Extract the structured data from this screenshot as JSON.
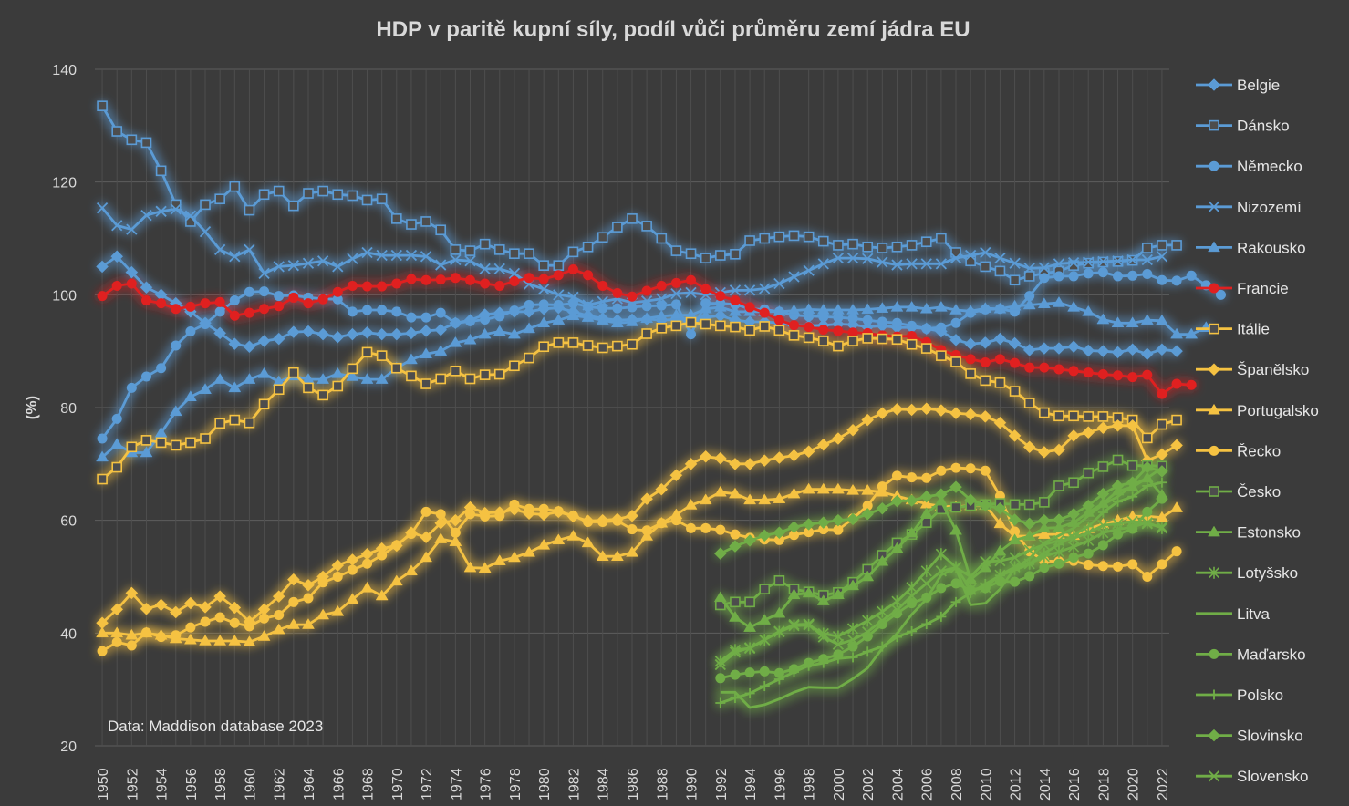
{
  "chart_data": {
    "type": "line",
    "title": "HDP v paritě kupní síly, podíl vůči průměru zemí jádra EU",
    "ylabel": "(%)",
    "xlabel": "",
    "ylim": [
      20,
      140
    ],
    "yticks": [
      20,
      40,
      60,
      80,
      100,
      120,
      140
    ],
    "xlim": [
      1950,
      2022
    ],
    "xticks": [
      1950,
      1952,
      1954,
      1956,
      1958,
      1960,
      1962,
      1964,
      1966,
      1968,
      1970,
      1972,
      1974,
      1976,
      1978,
      1980,
      1982,
      1984,
      1986,
      1988,
      1990,
      1992,
      1994,
      1996,
      1998,
      2000,
      2002,
      2004,
      2006,
      2008,
      2010,
      2012,
      2014,
      2016,
      2018,
      2020,
      2022
    ],
    "grid": true,
    "legend_position": "right",
    "annotation": "Data: Maddison database 2023",
    "series": [
      {
        "name": "Belgie",
        "color": "#5b9bd5",
        "marker": "diamond",
        "start": 1950,
        "values": [
          105,
          106.8,
          104,
          101.3,
          100,
          98.5,
          97,
          95,
          93.2,
          91.3,
          90.8,
          91.8,
          92.2,
          93.4,
          93.5,
          93,
          92.5,
          93,
          93.3,
          93,
          93,
          93.2,
          93.6,
          93.8,
          95,
          95.5,
          96.5,
          96.8,
          97,
          97,
          97.5,
          97.7,
          97,
          96.3,
          95.8,
          95.5,
          95.6,
          95.7,
          95.5,
          95.6,
          95.8,
          96,
          96.3,
          95.5,
          95.2,
          95.2,
          95,
          94.5,
          94.5,
          94.6,
          94.8,
          94.7,
          94.3,
          94.5,
          94.2,
          94.2,
          94,
          93.5,
          92,
          91.3,
          91.5,
          92.2,
          91.4,
          90.2,
          90.5,
          90.5,
          90.8,
          90.1,
          90,
          89.8,
          90.3,
          89.5,
          90.3,
          90
        ]
      },
      {
        "name": "Dánsko",
        "color": "#5b9bd5",
        "marker": "square",
        "start": 1950,
        "values": [
          133.5,
          129,
          127.5,
          127,
          122,
          116,
          113,
          116,
          117,
          119.2,
          115,
          117.8,
          118.4,
          115.8,
          118,
          118.4,
          117.8,
          117.6,
          116.8,
          117,
          113.5,
          112.5,
          113,
          111.5,
          108,
          107.8,
          109,
          108,
          107.3,
          107.3,
          105.2,
          105.2,
          107.6,
          108.5,
          110.2,
          112,
          113.5,
          112.2,
          110,
          107.8,
          107.3,
          106.5,
          107,
          107.2,
          109.6,
          110,
          110.3,
          110.5,
          110.3,
          109.5,
          108.8,
          109,
          108.5,
          108.3,
          108.5,
          108.8,
          109.4,
          110,
          107.5,
          106,
          105,
          104.2,
          102.6,
          103.3,
          103.8,
          104.2,
          105.2,
          105.6,
          105.8,
          105.9,
          106.1,
          108.3,
          108.8,
          108.8
        ]
      },
      {
        "name": "Německo",
        "color": "#5b9bd5",
        "marker": "circle",
        "start": 1950,
        "values": [
          74.5,
          78,
          83.5,
          85.5,
          87,
          91,
          93.5,
          94.8,
          97,
          99,
          100.5,
          100.6,
          99.8,
          99.9,
          99.5,
          99.3,
          99.2,
          97,
          97.3,
          97.3,
          97,
          96,
          96,
          96.8,
          95,
          95.3,
          95.6,
          96.2,
          97.2,
          98.2,
          98.3,
          98.2,
          98.5,
          97.9,
          97.6,
          97.6,
          97.8,
          98,
          98.1,
          98.3,
          93,
          98.5,
          98.5,
          98.3,
          97.5,
          97.4,
          97,
          96.4,
          96.2,
          96.1,
          96,
          95.8,
          95.5,
          95.2,
          95,
          94.5,
          94,
          94.2,
          95,
          96.8,
          97.4,
          97.5,
          97,
          99.8,
          103,
          103.3,
          103.3,
          103.8,
          104,
          103.3,
          103.4,
          103.7,
          102.6,
          102.5,
          103.4,
          101.7,
          100
        ]
      },
      {
        "name": "Nizozemí",
        "color": "#5b9bd5",
        "marker": "x",
        "start": 1950,
        "values": [
          115.4,
          112.3,
          111.6,
          114.1,
          114.8,
          115.2,
          114,
          111.2,
          108,
          106.8,
          108,
          103.8,
          105,
          105.2,
          105.6,
          106,
          105,
          106.4,
          107.5,
          107,
          107,
          107,
          106.8,
          105.3,
          106.2,
          106,
          104.6,
          104.6,
          103.8,
          101.9,
          101,
          100,
          99.6,
          98.2,
          98.8,
          99.3,
          98.6,
          98.9,
          99.3,
          100.2,
          100.4,
          100,
          100.4,
          100.8,
          100.8,
          101.1,
          102,
          103.2,
          104.3,
          105.5,
          106.5,
          106.5,
          106.4,
          105.8,
          105.3,
          105.5,
          105.5,
          105.5,
          106.5,
          107,
          107.5,
          106.5,
          105.6,
          104.7,
          104.8,
          105.5,
          105.7,
          105.8,
          105.9,
          106,
          106.2,
          106.2,
          106.8
        ]
      },
      {
        "name": "Rakousko",
        "color": "#5b9bd5",
        "marker": "triangle",
        "start": 1950,
        "values": [
          71.2,
          73.5,
          72,
          72,
          75.5,
          79.3,
          81.9,
          83.2,
          85,
          83.5,
          85,
          86,
          84.6,
          85.6,
          85,
          85,
          86,
          85.5,
          85,
          85,
          87,
          88.5,
          89.5,
          90,
          91.5,
          92,
          93,
          93.5,
          93,
          94,
          95,
          95.5,
          96.3,
          96,
          95.5,
          95,
          95.2,
          95.8,
          96.2,
          96.4,
          96.4,
          97.5,
          97.8,
          97,
          97,
          97,
          97,
          97.2,
          97.4,
          97.3,
          97.3,
          97.3,
          97.4,
          97.6,
          97.8,
          97.8,
          97.5,
          97.8,
          97.3,
          97.1,
          97.6,
          97.5,
          98,
          98.2,
          98.4,
          98.6,
          97.8,
          97,
          95.6,
          95,
          95,
          95.5,
          95.4,
          93,
          93,
          94.2
        ]
      },
      {
        "name": "Francie",
        "color": "#e02020",
        "marker": "circle",
        "start": 1950,
        "values": [
          99.8,
          101.6,
          102,
          99,
          98.5,
          97.5,
          97.9,
          98.5,
          98.7,
          96.3,
          96.8,
          97.5,
          98,
          99.5,
          98.5,
          99.2,
          100.5,
          101.6,
          101.5,
          101.5,
          102,
          102.8,
          102.6,
          102.7,
          103,
          102.6,
          102,
          101.6,
          102.4,
          103,
          102.8,
          103.5,
          104.5,
          103.5,
          101.6,
          100.3,
          99.7,
          100.7,
          101.6,
          102.1,
          102.6,
          101,
          99.8,
          99,
          97.8,
          96.8,
          95.5,
          94.6,
          94.3,
          93.8,
          93.6,
          93.3,
          93.2,
          92.8,
          92.6,
          92.7,
          91.6,
          90.2,
          89.3,
          88.6,
          88,
          88.6,
          87.9,
          87.1,
          87.1,
          86.8,
          86.5,
          86.2,
          85.9,
          85.7,
          85.4,
          85.8,
          82.4,
          84.2,
          84
        ]
      },
      {
        "name": "Itálie",
        "color": "#f5c242",
        "marker": "square",
        "start": 1950,
        "values": [
          67.3,
          69.4,
          73,
          74.2,
          73.8,
          73.3,
          73.8,
          74.5,
          77.2,
          77.8,
          77.3,
          80.6,
          83.2,
          86.2,
          83.5,
          82.2,
          83.8,
          86.9,
          89.8,
          89.2,
          87,
          85.6,
          84.2,
          85.1,
          86.5,
          85.1,
          85.8,
          85.9,
          87.4,
          88.8,
          90.8,
          91.5,
          91.5,
          91,
          90.6,
          90.9,
          91.2,
          93.1,
          94.1,
          94.5,
          95.1,
          94.8,
          94.5,
          94.3,
          93.7,
          94.4,
          93.7,
          92.8,
          92.4,
          91.8,
          90.9,
          91.8,
          92.3,
          92.2,
          92.1,
          91.2,
          90.5,
          89.2,
          88.1,
          86,
          84.8,
          84.4,
          82.9,
          80.8,
          79.1,
          78.5,
          78.5,
          78.4,
          78.4,
          78.2,
          77.8,
          74.6,
          77,
          77.8
        ]
      },
      {
        "name": "Španělsko",
        "color": "#f5c242",
        "marker": "diamond",
        "start": 1950,
        "values": [
          41.8,
          44.2,
          47.1,
          44.3,
          45,
          43.7,
          45.3,
          44.6,
          46.5,
          44.5,
          42,
          44.2,
          46.5,
          49.5,
          48.5,
          50,
          52,
          53,
          54,
          55,
          55.5,
          57.8,
          57,
          59.5,
          60,
          62.3,
          61.3,
          61.4,
          61.9,
          61.2,
          61,
          61.5,
          60.7,
          59.9,
          60,
          60.2,
          60.8,
          63.8,
          65.5,
          68,
          70,
          71.3,
          71,
          70,
          70,
          70.6,
          71.1,
          71.5,
          72.2,
          73.4,
          74.5,
          76,
          77.8,
          79,
          79.7,
          79.6,
          79.8,
          79.5,
          79,
          78.8,
          78.4,
          77.3,
          75,
          73,
          72.1,
          72.5,
          75,
          75.6,
          76.4,
          76.8,
          76.8,
          70.6,
          71.7,
          73.3
        ]
      },
      {
        "name": "Portugalsko",
        "color": "#f5c242",
        "marker": "triangle",
        "start": 1950,
        "values": [
          40,
          40,
          39.6,
          40,
          39.6,
          39,
          38.8,
          38.6,
          38.6,
          38.6,
          38.4,
          39.4,
          40.6,
          41.5,
          41.5,
          43.2,
          43.8,
          46,
          48,
          46.6,
          49.2,
          51,
          53.4,
          56.7,
          56.2,
          51.6,
          51.5,
          52.8,
          53.4,
          54.3,
          55.6,
          56.5,
          57.2,
          56,
          53.6,
          53.6,
          54.3,
          57.2,
          59.5,
          61,
          62.7,
          63.6,
          65,
          64.7,
          63.6,
          63.6,
          63.8,
          64.7,
          65.5,
          65.5,
          65.5,
          65.3,
          65.3,
          65,
          64.3,
          63.6,
          62.9,
          62.5,
          62.4,
          62.6,
          62.7,
          59.4,
          57.2,
          57.2,
          57.5,
          57.5,
          57.3,
          58.5,
          59.3,
          60,
          60.7,
          60.7,
          60.5,
          62.2
        ]
      },
      {
        "name": "Řecko",
        "color": "#f5c242",
        "marker": "circle",
        "start": 1950,
        "values": [
          36.8,
          38.4,
          37.8,
          40.1,
          39.3,
          39.6,
          41,
          42,
          42.8,
          41.8,
          41.2,
          42.6,
          43.2,
          45.5,
          46.2,
          49,
          50,
          51.2,
          52.3,
          53.8,
          55.6,
          57.6,
          61.5,
          61.1,
          57.8,
          61.1,
          60.7,
          60.8,
          62.8,
          62,
          62,
          61.6,
          60.8,
          59.7,
          59.7,
          59.9,
          58.4,
          58.2,
          59.5,
          60,
          58.6,
          58.6,
          58.3,
          57.5,
          56.9,
          56.6,
          56.5,
          57.4,
          57.9,
          58.4,
          58.3,
          60.3,
          62.6,
          66,
          67.9,
          67.6,
          67.5,
          68.8,
          69.3,
          69.2,
          68.8,
          64.3,
          58,
          54.5,
          52.8,
          52.7,
          52.8,
          52.1,
          51.9,
          51.8,
          52.2,
          50,
          52.2,
          54.5
        ]
      },
      {
        "name": "Česko",
        "color": "#70ad47",
        "marker": "square",
        "start": 1992,
        "values": [
          45,
          45.5,
          45.5,
          47.8,
          49.3,
          47.8,
          47.3,
          46.7,
          47.2,
          49,
          51.3,
          53.8,
          56,
          57.5,
          59.6,
          62,
          62.3,
          62.6,
          62.8,
          63,
          62.8,
          62.8,
          63.2,
          66.1,
          66.7,
          68.4,
          69.5,
          70.7,
          69.7,
          69.7,
          69.6
        ]
      },
      {
        "name": "Estonsko",
        "color": "#70ad47",
        "marker": "triangle",
        "start": 1992,
        "values": [
          46.3,
          42.8,
          41,
          42.3,
          43.5,
          46.8,
          47.1,
          45.7,
          46.8,
          48.4,
          50,
          52.7,
          55,
          57.7,
          61.2,
          63.4,
          58.2,
          49.5,
          51.6,
          54.5,
          56.5,
          57.2,
          58.6,
          58.7,
          59.6,
          61.4,
          63,
          65.2,
          65.9,
          67.5,
          64.5
        ]
      },
      {
        "name": "Lotyšsko",
        "color": "#70ad47",
        "marker": "asterisk",
        "start": 1992,
        "values": [
          35,
          37,
          37.3,
          38.8,
          40.2,
          41.3,
          41.4,
          39.9,
          39.4,
          40.8,
          42.2,
          43.8,
          45.6,
          48.1,
          51,
          54,
          51.7,
          47.7,
          48.1,
          50.3,
          51.7,
          52.3,
          53.6,
          54.4,
          55.3,
          56.4,
          57.8,
          58.4,
          58.8,
          59.6,
          58.6
        ]
      },
      {
        "name": "Litva",
        "color": "#70ad47",
        "marker": "none",
        "start": 1992,
        "values": [
          29.5,
          29.5,
          26.8,
          27.3,
          28.3,
          29.5,
          30.4,
          30.3,
          30.3,
          31.9,
          33.8,
          37.3,
          39.9,
          43.3,
          46,
          50.3,
          51.5,
          45,
          45.3,
          47.8,
          51.5,
          53.2,
          56,
          57.3,
          58.6,
          60.8,
          62.8,
          64.2,
          66.2,
          67.5,
          69.3
        ]
      },
      {
        "name": "Maďarsko",
        "color": "#70ad47",
        "marker": "circle",
        "start": 1992,
        "values": [
          32,
          32.6,
          33,
          33.2,
          32.9,
          33.6,
          34.7,
          35.4,
          36.2,
          37.6,
          39.4,
          41.6,
          43.5,
          45.3,
          46.3,
          48,
          48.8,
          47.6,
          48,
          49.2,
          49.1,
          50.1,
          51.6,
          52.3,
          53.4,
          54.1,
          55.6,
          57.5,
          58.5,
          61.5,
          63.8
        ]
      },
      {
        "name": "Polsko",
        "color": "#70ad47",
        "marker": "plus",
        "start": 1992,
        "values": [
          27.6,
          28.5,
          29.3,
          30.6,
          31.8,
          33.1,
          34.2,
          34.7,
          35.5,
          35.7,
          36.7,
          37.6,
          39.3,
          40.3,
          41.6,
          42.9,
          45.5,
          47.1,
          48.7,
          50.2,
          51.2,
          52.2,
          54.2,
          55.7,
          57.4,
          58.9,
          61.4,
          63.3,
          64.2,
          66.1,
          66.7
        ]
      },
      {
        "name": "Slovinsko",
        "color": "#70ad47",
        "marker": "diamond",
        "start": 1992,
        "values": [
          54.1,
          55.4,
          56.4,
          57.3,
          57.8,
          58.8,
          59.3,
          59.6,
          60,
          60.2,
          61.1,
          62.1,
          63.4,
          63.5,
          64.2,
          64.6,
          65.9,
          63.6,
          62.7,
          62.1,
          60.1,
          59.4,
          60,
          60.1,
          61.1,
          62.6,
          64.7,
          66.1,
          66.7,
          69.4,
          68.7
        ]
      },
      {
        "name": "Slovensko",
        "color": "#70ad47",
        "marker": "x",
        "start": 1992,
        "values": [
          34.4,
          36.6,
          37.4,
          38.8,
          40.3,
          41.5,
          41.6,
          39.3,
          38,
          38.8,
          40.2,
          42.2,
          44.1,
          46.6,
          48.8,
          51,
          51.6,
          50,
          52.7,
          52.8,
          53.4,
          54.7,
          55.7,
          56.4,
          56.8,
          57.8,
          59.1,
          59.4,
          59.8,
          59.4,
          58.8
        ]
      }
    ]
  }
}
